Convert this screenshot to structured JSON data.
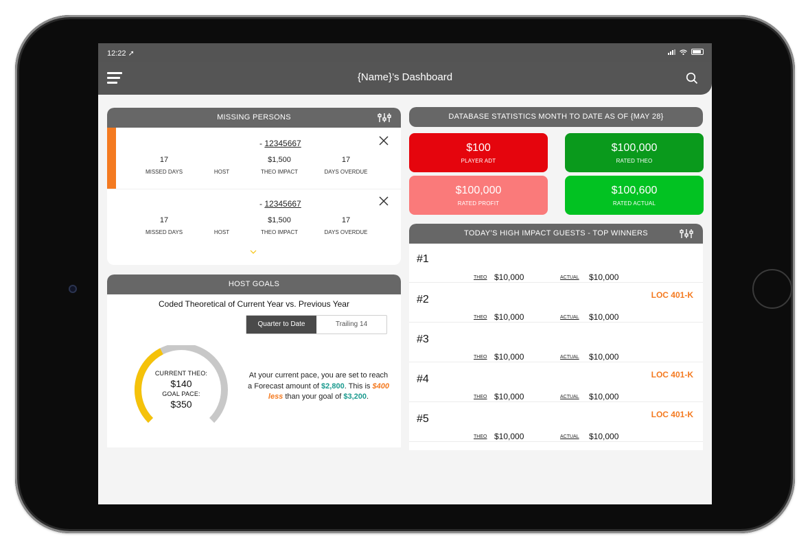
{
  "status_bar": {
    "time": "12:22 ➚"
  },
  "topbar": {
    "title": "{Name}’s Dashboard"
  },
  "missing_persons": {
    "title": "MISSING PERSONS",
    "rows": [
      {
        "id_prefix": "- ",
        "id": "12345667",
        "missed_days": "17",
        "missed_days_label": "MISSED DAYS",
        "host_label": "HOST",
        "theo_impact": "$1,500",
        "theo_impact_label": "THEO IMPACT",
        "days_overdue": "17",
        "days_overdue_label": "DAYS OVERDUE"
      },
      {
        "id_prefix": "- ",
        "id": "12345667",
        "missed_days": "17",
        "missed_days_label": "MISSED DAYS",
        "host_label": "HOST",
        "theo_impact": "$1,500",
        "theo_impact_label": "THEO IMPACT",
        "days_overdue": "17",
        "days_overdue_label": "DAYS OVERDUE"
      }
    ]
  },
  "host_goals": {
    "title": "HOST GOALS",
    "subtitle": "Coded Theoretical of Current Year vs. Previous Year",
    "tabs": [
      "Quarter to Date",
      "Trailing 14"
    ],
    "active_tab": "Quarter to Date",
    "current_theo_label": "CURRENT THEO:",
    "current_theo": "$140",
    "goal_pace_label": "GOAL PACE:",
    "goal_pace": "$350",
    "gauge_progress": 0.4,
    "forecast": {
      "p1": "At your current pace, you are set to reach a Forecast amount of ",
      "amount": "$2,800",
      "p2": ". This is ",
      "less": "$400 less",
      "p3": " than your goal of ",
      "goal": "$3,200",
      "p4": "."
    }
  },
  "db_stats": {
    "title": "DATABASE STATISTICS MONTH TO DATE AS OF {MAY 28}",
    "tiles": [
      {
        "value": "$100",
        "label": "PLAYER ADT",
        "color": "#e5050d"
      },
      {
        "value": "$100,000",
        "label": "RATED THEO",
        "color": "#0a9a1c"
      },
      {
        "value": "$100,000",
        "label": "RATED PROFIT",
        "color": "#fa7a7a"
      },
      {
        "value": "$100,600",
        "label": "RATED ACTUAL",
        "color": "#02c222"
      }
    ]
  },
  "winners": {
    "title": "TODAY’S HIGH IMPACT GUESTS - TOP WINNERS",
    "theo_label": "THEO",
    "actual_label": "ACTUAL",
    "rows": [
      {
        "rank": "#1",
        "theo": "$10,000",
        "actual": "$10,000",
        "loc": ""
      },
      {
        "rank": "#2",
        "theo": "$10,000",
        "actual": "$10,000",
        "loc": "LOC 401-K"
      },
      {
        "rank": "#3",
        "theo": "$10,000",
        "actual": "$10,000",
        "loc": ""
      },
      {
        "rank": "#4",
        "theo": "$10,000",
        "actual": "$10,000",
        "loc": "LOC 401-K"
      },
      {
        "rank": "#5",
        "theo": "$10,000",
        "actual": "$10,000",
        "loc": "LOC 401-K"
      }
    ]
  },
  "colors": {
    "accent_orange": "#f47a20",
    "teal": "#1a9a8e",
    "gauge_fill": "#f5c20a",
    "gauge_track": "#c8c8c8",
    "header_gray": "#676767"
  }
}
